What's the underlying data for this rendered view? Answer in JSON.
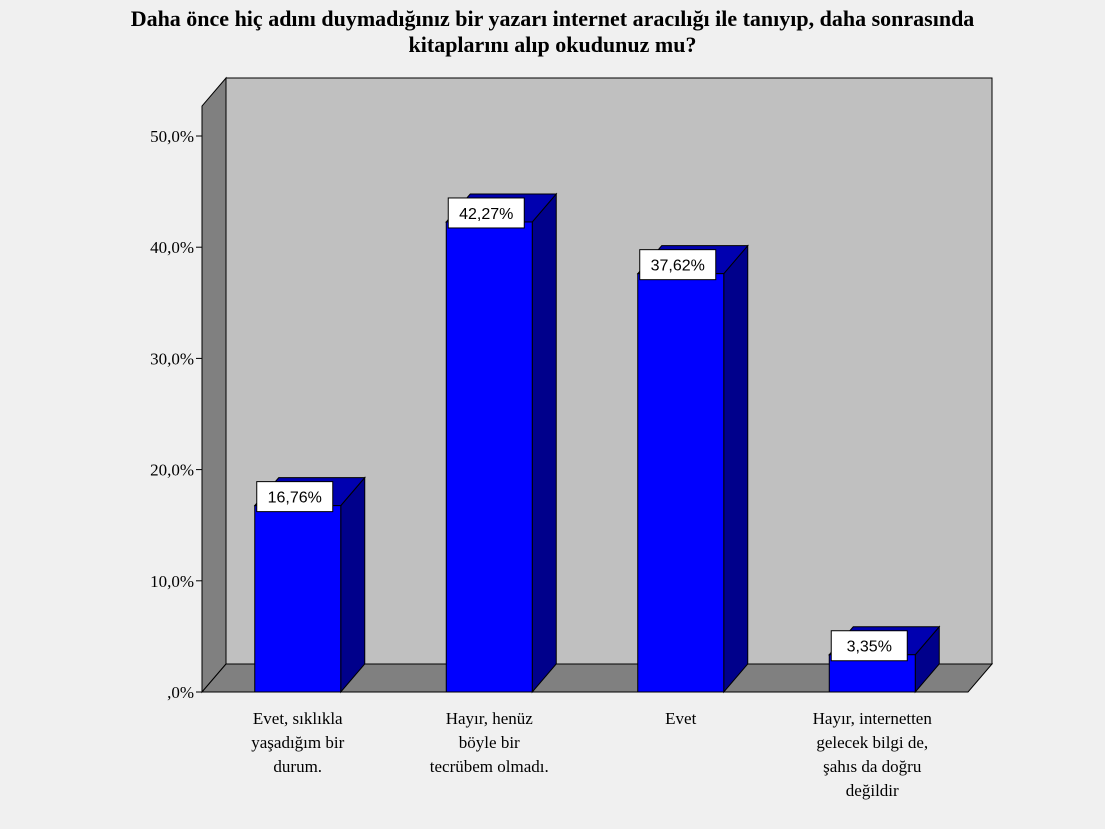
{
  "chart_data": {
    "type": "bar",
    "title_lines": [
      "Daha önce hiç adını duymadığınız bir yazarı internet aracılığı ile tanıyıp, daha sonrasında",
      "kitaplarını alıp okudunuz mu?"
    ],
    "categories": [
      [
        "Evet, sıklıkla",
        "yaşadığım bir",
        "durum."
      ],
      [
        "Hayır, henüz",
        "böyle bir",
        "tecrübem olmadı."
      ],
      [
        "Evet"
      ],
      [
        "Hayır, internetten",
        "gelecek bilgi de,",
        "şahıs da doğru",
        "değildir"
      ]
    ],
    "values": [
      16.76,
      42.27,
      37.62,
      3.35
    ],
    "value_labels": [
      "16,76%",
      "42,27%",
      "37,62%",
      "3,35%"
    ],
    "ylim": [
      0,
      50
    ],
    "y_ticks": [
      0,
      10,
      20,
      30,
      40,
      50
    ],
    "y_tick_labels": [
      ",0%",
      "10,0%",
      "20,0%",
      "30,0%",
      "40,0%",
      "50,0%"
    ],
    "xlabel": "",
    "ylabel": "",
    "grid": false,
    "colors": {
      "bar_front": "#0000ff",
      "bar_side": "#00008b",
      "bar_top": "#0000b0",
      "back_wall": "#c0c0c0",
      "side_wall": "#808080",
      "floor": "#808080",
      "background": "#f0f0f0"
    }
  }
}
